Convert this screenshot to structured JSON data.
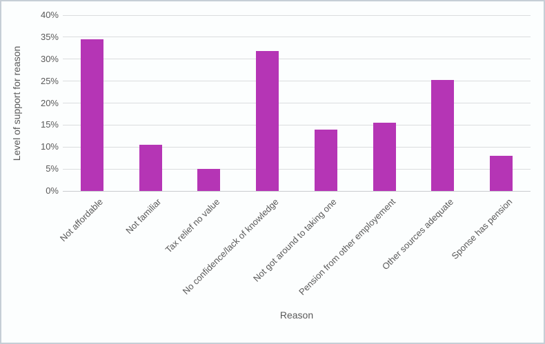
{
  "chart_data": {
    "type": "bar",
    "xlabel": "Reason",
    "ylabel": "Level of support for reason",
    "categories": [
      "Not affordable",
      "Not familiar",
      "Tax relief no value",
      "No confidence/lack of knowledge",
      "Not got around to taking one",
      "Pension from other employement",
      "Other sources adequate",
      "Sponse has pension"
    ],
    "values": [
      34.5,
      10.5,
      5,
      31.8,
      13.9,
      15.5,
      25.2,
      8
    ],
    "ylim": [
      0,
      40
    ],
    "yticks": [
      "0%",
      "5%",
      "10%",
      "15%",
      "20%",
      "25%",
      "30%",
      "35%",
      "40%"
    ],
    "grid": "horizontal",
    "legend": "none",
    "bar_color": "#B535B5",
    "gridline_color": "#DADCDE",
    "axis_line_color": "#C9CCCF",
    "text_color": "#595959",
    "frame_border_color": "#C6CED6",
    "background_color": "#FCFEFE"
  }
}
